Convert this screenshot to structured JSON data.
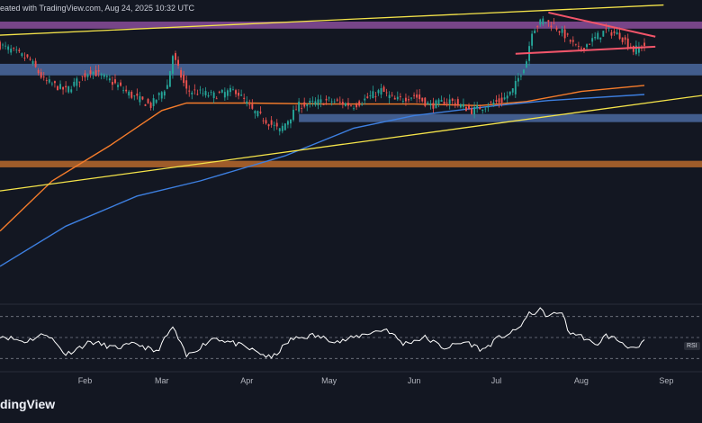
{
  "header": {
    "text": "eated with TradingView.com, Aug 24, 2025 10:32 UTC"
  },
  "brand": {
    "text": "dingView"
  },
  "colors": {
    "background": "#131722",
    "up": "#26a69a",
    "down": "#ef5350",
    "ma_short": "#f57c2b",
    "ma_long": "#3d7fe0",
    "trendline": "#f5e44a",
    "zone_purple": "#8a4d9a",
    "zone_blue": "#4b6aa0",
    "zone_orange": "#b8692b",
    "pennant": "#f2556a",
    "rsi": "#ffffff"
  },
  "chart_data": {
    "type": "candlestick",
    "x_start": "2025-01-01",
    "x_end": "2025-09-14",
    "ylim": [
      62,
      122
    ],
    "grid": false,
    "x_ticks": [
      {
        "date": "2025-02-01",
        "label": "Feb"
      },
      {
        "date": "2025-03-01",
        "label": "Mar"
      },
      {
        "date": "2025-04-01",
        "label": "Apr"
      },
      {
        "date": "2025-05-01",
        "label": "May"
      },
      {
        "date": "2025-06-01",
        "label": "Jun"
      },
      {
        "date": "2025-07-01",
        "label": "Jul"
      },
      {
        "date": "2025-08-01",
        "label": "Aug"
      },
      {
        "date": "2025-09-01",
        "label": "Sep"
      }
    ],
    "close_path": [
      {
        "date": "2025-01-01",
        "close": 113
      },
      {
        "date": "2025-01-05",
        "close": 112
      },
      {
        "date": "2025-01-12",
        "close": 110
      },
      {
        "date": "2025-01-17",
        "close": 106
      },
      {
        "date": "2025-01-25",
        "close": 104
      },
      {
        "date": "2025-02-03",
        "close": 108
      },
      {
        "date": "2025-02-10",
        "close": 106
      },
      {
        "date": "2025-02-18",
        "close": 103
      },
      {
        "date": "2025-02-25",
        "close": 101
      },
      {
        "date": "2025-03-03",
        "close": 105
      },
      {
        "date": "2025-03-05",
        "close": 111
      },
      {
        "date": "2025-03-10",
        "close": 104
      },
      {
        "date": "2025-03-20",
        "close": 103
      },
      {
        "date": "2025-03-28",
        "close": 104
      },
      {
        "date": "2025-04-03",
        "close": 100
      },
      {
        "date": "2025-04-08",
        "close": 98
      },
      {
        "date": "2025-04-13",
        "close": 96
      },
      {
        "date": "2025-04-20",
        "close": 101
      },
      {
        "date": "2025-05-01",
        "close": 102
      },
      {
        "date": "2025-05-10",
        "close": 101
      },
      {
        "date": "2025-05-20",
        "close": 104
      },
      {
        "date": "2025-05-25",
        "close": 102
      },
      {
        "date": "2025-06-01",
        "close": 103
      },
      {
        "date": "2025-06-07",
        "close": 101
      },
      {
        "date": "2025-06-14",
        "close": 102
      },
      {
        "date": "2025-06-22",
        "close": 100
      },
      {
        "date": "2025-06-27",
        "close": 101
      },
      {
        "date": "2025-07-03",
        "close": 102
      },
      {
        "date": "2025-07-07",
        "close": 104
      },
      {
        "date": "2025-07-12",
        "close": 110
      },
      {
        "date": "2025-07-14",
        "close": 116
      },
      {
        "date": "2025-07-18",
        "close": 118
      },
      {
        "date": "2025-07-22",
        "close": 117
      },
      {
        "date": "2025-07-26",
        "close": 115
      },
      {
        "date": "2025-07-31",
        "close": 112
      },
      {
        "date": "2025-08-05",
        "close": 114
      },
      {
        "date": "2025-08-10",
        "close": 116
      },
      {
        "date": "2025-08-15",
        "close": 115
      },
      {
        "date": "2025-08-20",
        "close": 112
      },
      {
        "date": "2025-08-24",
        "close": 113
      }
    ],
    "ma_short": [
      {
        "date": "2025-01-01",
        "value": 76
      },
      {
        "date": "2025-01-20",
        "value": 86
      },
      {
        "date": "2025-02-10",
        "value": 93
      },
      {
        "date": "2025-03-01",
        "value": 100
      },
      {
        "date": "2025-03-10",
        "value": 101.5
      },
      {
        "date": "2025-04-01",
        "value": 101.5
      },
      {
        "date": "2025-05-01",
        "value": 101.3
      },
      {
        "date": "2025-06-01",
        "value": 101.3
      },
      {
        "date": "2025-06-25",
        "value": 101
      },
      {
        "date": "2025-07-12",
        "value": 101.8
      },
      {
        "date": "2025-08-01",
        "value": 103.8
      },
      {
        "date": "2025-08-24",
        "value": 105
      }
    ],
    "ma_long": [
      {
        "date": "2025-01-01",
        "value": 69
      },
      {
        "date": "2025-01-25",
        "value": 77
      },
      {
        "date": "2025-02-20",
        "value": 83
      },
      {
        "date": "2025-03-15",
        "value": 86
      },
      {
        "date": "2025-04-15",
        "value": 91
      },
      {
        "date": "2025-05-10",
        "value": 96.5
      },
      {
        "date": "2025-06-01",
        "value": 99
      },
      {
        "date": "2025-07-01",
        "value": 101
      },
      {
        "date": "2025-07-20",
        "value": 102
      },
      {
        "date": "2025-08-24",
        "value": 103.2
      }
    ],
    "rsi": {
      "ylim": [
        20,
        80
      ],
      "levels": [
        70,
        50,
        30
      ],
      "values": [
        {
          "date": "2025-01-01",
          "value": 52
        },
        {
          "date": "2025-01-10",
          "value": 46
        },
        {
          "date": "2025-01-18",
          "value": 54
        },
        {
          "date": "2025-01-25",
          "value": 34
        },
        {
          "date": "2025-02-03",
          "value": 46
        },
        {
          "date": "2025-02-12",
          "value": 40
        },
        {
          "date": "2025-02-20",
          "value": 44
        },
        {
          "date": "2025-02-27",
          "value": 36
        },
        {
          "date": "2025-03-05",
          "value": 60
        },
        {
          "date": "2025-03-10",
          "value": 32
        },
        {
          "date": "2025-03-20",
          "value": 50
        },
        {
          "date": "2025-03-28",
          "value": 44
        },
        {
          "date": "2025-04-05",
          "value": 36
        },
        {
          "date": "2025-04-10",
          "value": 30
        },
        {
          "date": "2025-04-17",
          "value": 48
        },
        {
          "date": "2025-04-25",
          "value": 52
        },
        {
          "date": "2025-05-05",
          "value": 46
        },
        {
          "date": "2025-05-15",
          "value": 54
        },
        {
          "date": "2025-05-22",
          "value": 58
        },
        {
          "date": "2025-05-28",
          "value": 44
        },
        {
          "date": "2025-06-05",
          "value": 50
        },
        {
          "date": "2025-06-12",
          "value": 40
        },
        {
          "date": "2025-06-20",
          "value": 46
        },
        {
          "date": "2025-06-26",
          "value": 38
        },
        {
          "date": "2025-07-02",
          "value": 50
        },
        {
          "date": "2025-07-08",
          "value": 56
        },
        {
          "date": "2025-07-13",
          "value": 72
        },
        {
          "date": "2025-07-17",
          "value": 76
        },
        {
          "date": "2025-07-20",
          "value": 70
        },
        {
          "date": "2025-07-25",
          "value": 75
        },
        {
          "date": "2025-07-27",
          "value": 56
        },
        {
          "date": "2025-08-02",
          "value": 50
        },
        {
          "date": "2025-08-06",
          "value": 42
        },
        {
          "date": "2025-08-10",
          "value": 52
        },
        {
          "date": "2025-08-14",
          "value": 48
        },
        {
          "date": "2025-08-18",
          "value": 42
        },
        {
          "date": "2025-08-21",
          "value": 38
        },
        {
          "date": "2025-08-24",
          "value": 46
        }
      ]
    },
    "annotations": [
      {
        "type": "trendline",
        "name": "upper-channel",
        "from": {
          "date": "2025-01-01",
          "value": 115
        },
        "to": {
          "date": "2025-08-31",
          "value": 121
        }
      },
      {
        "type": "trendline",
        "name": "lower-channel",
        "from": {
          "date": "2025-01-01",
          "value": 84
        },
        "to": {
          "date": "2025-09-14",
          "value": 103
        }
      },
      {
        "type": "zone",
        "name": "purple-resistance",
        "low": 116.3,
        "high": 117.7
      },
      {
        "type": "zone",
        "name": "blue-support-upper",
        "low": 107,
        "high": 109.3
      },
      {
        "type": "zone",
        "name": "blue-support-lower",
        "low": 97.7,
        "high": 99.3,
        "from": "2025-04-20"
      },
      {
        "type": "zone",
        "name": "orange-support",
        "low": 88.7,
        "high": 90
      },
      {
        "type": "trendline",
        "name": "pennant-top",
        "from": {
          "date": "2025-07-20",
          "value": 119.5
        },
        "to": {
          "date": "2025-08-28",
          "value": 114.7
        }
      },
      {
        "type": "trendline",
        "name": "pennant-bottom",
        "from": {
          "date": "2025-07-08",
          "value": 111.3
        },
        "to": {
          "date": "2025-08-28",
          "value": 112.7
        }
      }
    ]
  },
  "rsi_tag": "RSI"
}
